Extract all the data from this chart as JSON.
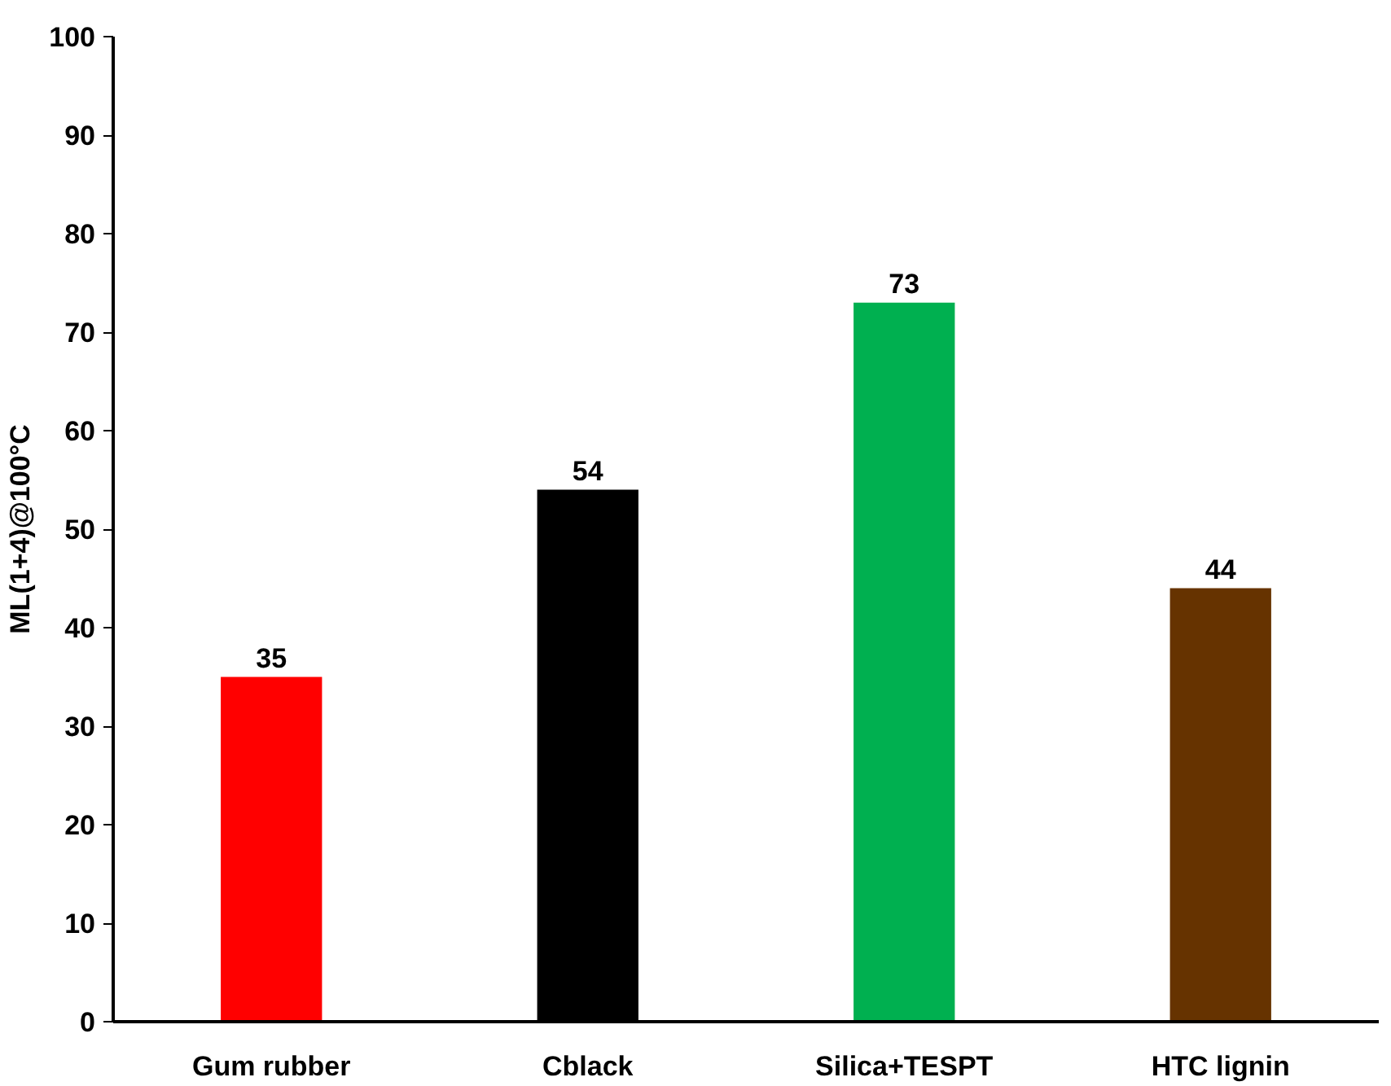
{
  "chart_data": {
    "type": "bar",
    "ylabel": "ML(1+4)@100°C",
    "categories": [
      "Gum rubber",
      "Cblack",
      "Silica+TESPT",
      "HTC lignin"
    ],
    "values": [
      35,
      54,
      73,
      44
    ],
    "colors": [
      "#ff0000",
      "#000000",
      "#00b050",
      "#663300"
    ],
    "ylim": [
      0,
      100
    ],
    "yticks": [
      0,
      10,
      20,
      30,
      40,
      50,
      60,
      70,
      80,
      90,
      100
    ],
    "data_labels": true
  }
}
